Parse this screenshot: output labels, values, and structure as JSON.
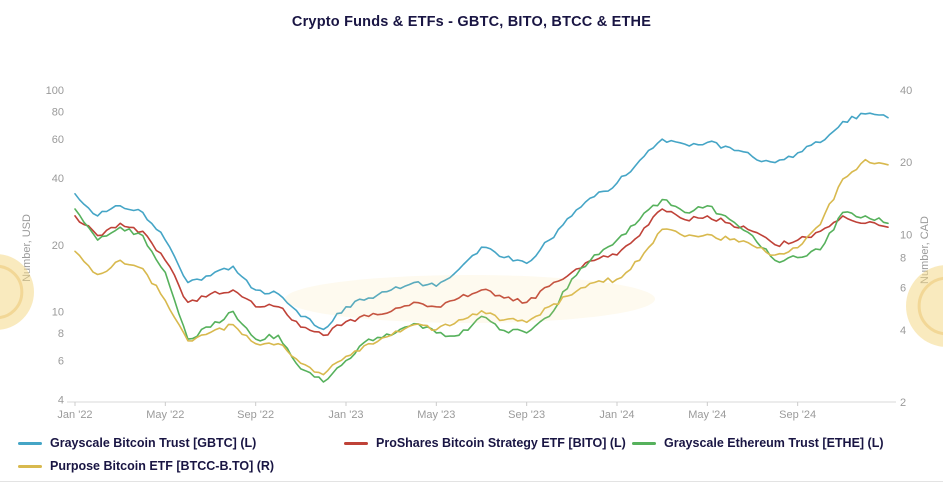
{
  "page": {
    "title": "Crypto Funds & ETFs - GBTC, BITO, BTCC & ETHE"
  },
  "watermark": {
    "color": "#f4d57e"
  },
  "chart_data": {
    "type": "line",
    "title": "Crypto Funds & ETFs - GBTC, BITO, BTCC & ETHE",
    "x": [
      "2022-01",
      "2022-02",
      "2022-03",
      "2022-04",
      "2022-05",
      "2022-06",
      "2022-07",
      "2022-08",
      "2022-09",
      "2022-10",
      "2022-11",
      "2022-12",
      "2023-01",
      "2023-02",
      "2023-03",
      "2023-04",
      "2023-05",
      "2023-06",
      "2023-07",
      "2023-08",
      "2023-09",
      "2023-10",
      "2023-11",
      "2023-12",
      "2024-01",
      "2024-02",
      "2024-03",
      "2024-04",
      "2024-05",
      "2024-06",
      "2024-07",
      "2024-08",
      "2024-09",
      "2024-10",
      "2024-11",
      "2024-12",
      "2025-01"
    ],
    "x_ticks": [
      {
        "i": 0,
        "label": "Jan '22"
      },
      {
        "i": 4,
        "label": "May '22"
      },
      {
        "i": 8,
        "label": "Sep '22"
      },
      {
        "i": 12,
        "label": "Jan '23"
      },
      {
        "i": 16,
        "label": "May '23"
      },
      {
        "i": 20,
        "label": "Sep '23"
      },
      {
        "i": 24,
        "label": "Jan '24"
      },
      {
        "i": 28,
        "label": "May '24"
      },
      {
        "i": 32,
        "label": "Sep '24"
      }
    ],
    "left_axis": {
      "label": "Number, USD",
      "scale": "log",
      "min": 3.9,
      "max": 100,
      "ticks": [
        4,
        6,
        8,
        10,
        20,
        40,
        60,
        80,
        100
      ]
    },
    "right_axis": {
      "label": "Number, CAD",
      "scale": "log",
      "min": 2,
      "max": 40,
      "ticks": [
        2,
        4,
        6,
        8,
        10,
        20,
        40
      ]
    },
    "series": [
      {
        "key": "gbtc",
        "name": "Grayscale Bitcoin Trust [GBTC] (L)",
        "axis": "left",
        "color": "#45a5c6",
        "values": [
          34,
          27,
          30,
          28,
          21,
          13.5,
          14.5,
          16,
          12.5,
          12,
          9.5,
          8.3,
          10.5,
          11.5,
          12.5,
          13.5,
          13,
          15.5,
          19.5,
          17.5,
          16.5,
          21,
          27,
          33,
          38,
          48,
          60,
          57,
          58,
          55,
          50,
          47,
          52,
          58,
          72,
          78,
          75
        ]
      },
      {
        "key": "bito",
        "name": "ProShares Bitcoin Strategy ETF [BITO] (L)",
        "axis": "left",
        "color": "#bf4238",
        "values": [
          27,
          22,
          25,
          23,
          17,
          11,
          12,
          12.5,
          10.5,
          10.5,
          8.5,
          7.8,
          9,
          9.5,
          10,
          11,
          10.5,
          11.5,
          12.5,
          11.5,
          11,
          13,
          15,
          17,
          18,
          22,
          29,
          26,
          27,
          25,
          23,
          20,
          21,
          23,
          27,
          25,
          24
        ]
      },
      {
        "key": "ethe",
        "name": "Grayscale Ethereum Trust [ETHE] (L)",
        "axis": "left",
        "color": "#56b15c",
        "values": [
          29,
          21,
          24,
          22,
          15,
          7.5,
          8.5,
          10,
          7.5,
          7.8,
          5.5,
          4.8,
          6,
          7.5,
          7.8,
          8.8,
          8,
          7.8,
          9.5,
          8.2,
          8,
          9.5,
          14,
          18,
          21,
          26,
          32,
          28,
          30,
          26,
          22,
          17,
          17.5,
          19,
          28,
          27,
          25
        ]
      },
      {
        "key": "btcc",
        "name": "Purpose Bitcoin ETF [BTCC-B.TO] (R)",
        "axis": "right",
        "color": "#d8b94e",
        "values": [
          8.5,
          6.8,
          7.8,
          7.2,
          5.3,
          3.6,
          3.9,
          4.2,
          3.5,
          3.5,
          2.9,
          2.6,
          3.1,
          3.5,
          3.8,
          4.2,
          4.0,
          4.4,
          4.8,
          4.4,
          4.3,
          5.0,
          5.6,
          6.3,
          6.5,
          7.8,
          10.5,
          9.8,
          10.0,
          9.5,
          9.0,
          8.2,
          8.8,
          11.0,
          17.0,
          20.5,
          19.5
        ]
      }
    ],
    "legend_position": "bottom"
  }
}
